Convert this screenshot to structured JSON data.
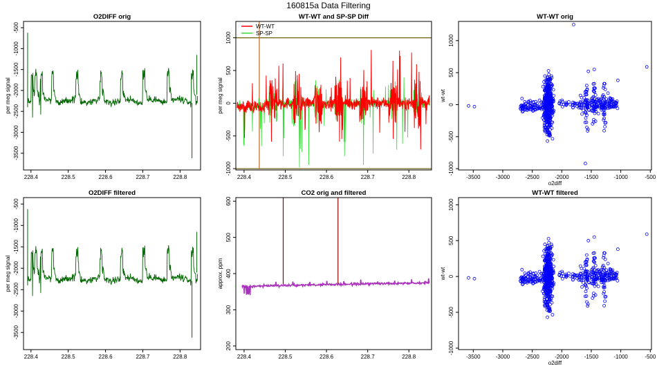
{
  "figure_title": "160815a   Data Filtering",
  "colors": {
    "o2diff": "#006400",
    "wtwt": "#ff0000",
    "spsp": "#33dd33",
    "scatter": "#0000ff",
    "co2": "#aa33bb",
    "co2_spike": "#8b0000",
    "ref_line": "#7a6a20"
  },
  "chart_data": [
    {
      "id": "o2diff-orig",
      "type": "line",
      "title": "O2DIFF orig",
      "xlabel": "",
      "ylabel": "per meg signal",
      "xlim": [
        228.38,
        228.855
      ],
      "ylim": [
        -3900,
        -350
      ],
      "xticks": [
        "228.4",
        "228.5",
        "228.6",
        "228.7",
        "228.8"
      ],
      "xtick_values": [
        228.4,
        228.5,
        228.6,
        228.7,
        228.8
      ],
      "yticks": [
        "-500",
        "-1000",
        "-1500",
        "-2000",
        "-2500",
        "-3000",
        "-3500"
      ],
      "ytick_values": [
        -500,
        -1000,
        -1500,
        -2000,
        -2500,
        -3000,
        -3500
      ],
      "series": [
        {
          "name": "O2DIFF",
          "color": "#006400",
          "baseline": -2250,
          "noise": 70,
          "spikes_to": -1500
        }
      ]
    },
    {
      "id": "wtwt-spsp-diff",
      "type": "line",
      "title": "WT-WT and SP-SP Diff",
      "xlabel": "",
      "ylabel": "per meg signal",
      "xlim": [
        228.38,
        228.855
      ],
      "ylim": [
        -1020,
        1250
      ],
      "xticks": [
        "228.4",
        "228.5",
        "228.6",
        "228.7",
        "228.8"
      ],
      "xtick_values": [
        228.4,
        228.5,
        228.6,
        228.7,
        228.8
      ],
      "yticks": [
        "1000",
        "500",
        "0",
        "-500",
        "-1000"
      ],
      "ytick_values": [
        1000,
        500,
        0,
        -500,
        -1000
      ],
      "hlines": [
        1000,
        -1000
      ],
      "legend": [
        "WT-WT",
        "SP-SP"
      ],
      "legend_position": "top-left",
      "series": [
        {
          "name": "SP-SP",
          "color": "#33dd33",
          "baseline": 0,
          "noise": 60
        },
        {
          "name": "WT-WT",
          "color": "#ff0000",
          "baseline": 0,
          "noise": 90
        }
      ]
    },
    {
      "id": "wtwt-orig",
      "type": "scatter",
      "title": "WT-WT orig",
      "xlabel": "o2diff",
      "ylabel": "wt-wt",
      "xlim": [
        -3750,
        -480
      ],
      "ylim": [
        -1020,
        1300
      ],
      "xticks": [
        "-3500",
        "-3000",
        "-2500",
        "-2000",
        "-1500",
        "-1000",
        "-500"
      ],
      "xtick_values": [
        -3500,
        -3000,
        -2500,
        -2000,
        -1500,
        -1000,
        -500
      ],
      "yticks": [
        "1000",
        "500",
        "0",
        "-500",
        "-1000"
      ],
      "ytick_values": [
        1000,
        500,
        0,
        -500,
        -1000
      ],
      "outliers": [
        [
          -1800,
          1250
        ],
        [
          -1600,
          -920
        ],
        [
          -560,
          590
        ],
        [
          -3580,
          -20
        ],
        [
          -3480,
          -30
        ],
        [
          -1450,
          550
        ],
        [
          -1550,
          520
        ],
        [
          -1050,
          380
        ]
      ],
      "cluster_center": [
        -2230,
        0
      ]
    },
    {
      "id": "o2diff-filtered",
      "type": "line",
      "title": "O2DIFF filtered",
      "xlabel": "",
      "ylabel": "per meg signal",
      "xlim": [
        228.38,
        228.855
      ],
      "ylim": [
        -3900,
        -350
      ],
      "xticks": [
        "228.4",
        "228.5",
        "228.6",
        "228.7",
        "228.8"
      ],
      "xtick_values": [
        228.4,
        228.5,
        228.6,
        228.7,
        228.8
      ],
      "yticks": [
        "-500",
        "-1000",
        "-1500",
        "-2000",
        "-2500",
        "-3000",
        "-3500"
      ],
      "ytick_values": [
        -500,
        -1000,
        -1500,
        -2000,
        -2500,
        -3000,
        -3500
      ],
      "series": [
        {
          "name": "O2DIFF",
          "color": "#006400",
          "baseline": -2250,
          "noise": 70,
          "spikes_to": -1500
        }
      ]
    },
    {
      "id": "co2-orig-filtered",
      "type": "line",
      "title": "CO2 orig and filtered",
      "xlabel": "",
      "ylabel": "approx. ppm",
      "xlim": [
        228.38,
        228.855
      ],
      "ylim": [
        190,
        610
      ],
      "xticks": [
        "228.4",
        "228.5",
        "228.6",
        "228.7",
        "228.8"
      ],
      "xtick_values": [
        228.4,
        228.5,
        228.6,
        228.7,
        228.8
      ],
      "yticks": [
        "600",
        "500",
        "400",
        "300",
        "200"
      ],
      "ytick_values": [
        600,
        500,
        400,
        300,
        200
      ],
      "spikes_at": [
        228.495,
        228.628
      ],
      "series": [
        {
          "name": "CO2",
          "color": "#aa33bb",
          "start": 365,
          "end": 375
        }
      ]
    },
    {
      "id": "wtwt-filtered",
      "type": "scatter",
      "title": "WT-WT filtered",
      "xlabel": "o2diff",
      "ylabel": "wt-wt",
      "xlim": [
        -3750,
        -480
      ],
      "ylim": [
        -1020,
        1100
      ],
      "xticks": [
        "-3500",
        "-3000",
        "-2500",
        "-2000",
        "-1500",
        "-1000",
        "-500"
      ],
      "xtick_values": [
        -3500,
        -3000,
        -2500,
        -2000,
        -1500,
        -1000,
        -500
      ],
      "yticks": [
        "1000",
        "500",
        "0",
        "-500",
        "-1000"
      ],
      "ytick_values": [
        1000,
        500,
        0,
        -500,
        -1000
      ],
      "outliers": [
        [
          -560,
          590
        ],
        [
          -3580,
          -20
        ],
        [
          -3480,
          -30
        ],
        [
          -1450,
          550
        ],
        [
          -1550,
          500
        ],
        [
          -1050,
          380
        ]
      ],
      "cluster_center": [
        -2230,
        0
      ]
    }
  ]
}
